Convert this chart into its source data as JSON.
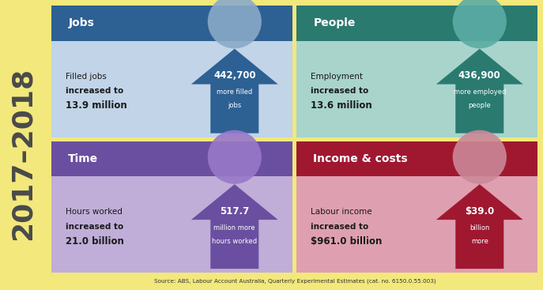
{
  "bg_color": "#f2e87c",
  "year_text": "2017–2018",
  "year_color": "#4a4a4a",
  "source_text": "Source: ABS, Labour Account Australia, Quarterly Experimental Estimates (cat. no. 6150.0.55.003)",
  "panels": [
    {
      "title": "Jobs",
      "title_bg": "#2d6093",
      "body_bg": "#c2d4e8",
      "desc_line1": "Filled jobs",
      "desc_line2": "increased to",
      "desc_line3": "13.9 million",
      "highlight_num": "442,700",
      "highlight_line2": "more filled",
      "highlight_line3": "jobs",
      "arrow_color": "#2d6093",
      "circle_color": "#8aaac8"
    },
    {
      "title": "People",
      "title_bg": "#2a7a70",
      "body_bg": "#a8d4cc",
      "desc_line1": "Employment",
      "desc_line2": "increased to",
      "desc_line3": "13.6 million",
      "highlight_num": "436,900",
      "highlight_line2": "more employed",
      "highlight_line3": "people",
      "arrow_color": "#2a7a70",
      "circle_color": "#5aada5"
    },
    {
      "title": "Time",
      "title_bg": "#6a4fa0",
      "body_bg": "#c0aed8",
      "desc_line1": "Hours worked",
      "desc_line2": "increased to",
      "desc_line3": "21.0 billion",
      "highlight_num": "517.7",
      "highlight_line2": "million more",
      "highlight_line3": "hours worked",
      "arrow_color": "#6a4fa0",
      "circle_color": "#9878c8"
    },
    {
      "title": "Income & costs",
      "title_bg": "#a01830",
      "body_bg": "#dea0b0",
      "desc_line1": "Labour income",
      "desc_line2": "increased to",
      "desc_line3": "$961.0 billion",
      "highlight_num": "$39.0",
      "highlight_line2": "billion",
      "highlight_line3": "more",
      "arrow_color": "#a01830",
      "circle_color": "#cc8898"
    }
  ]
}
